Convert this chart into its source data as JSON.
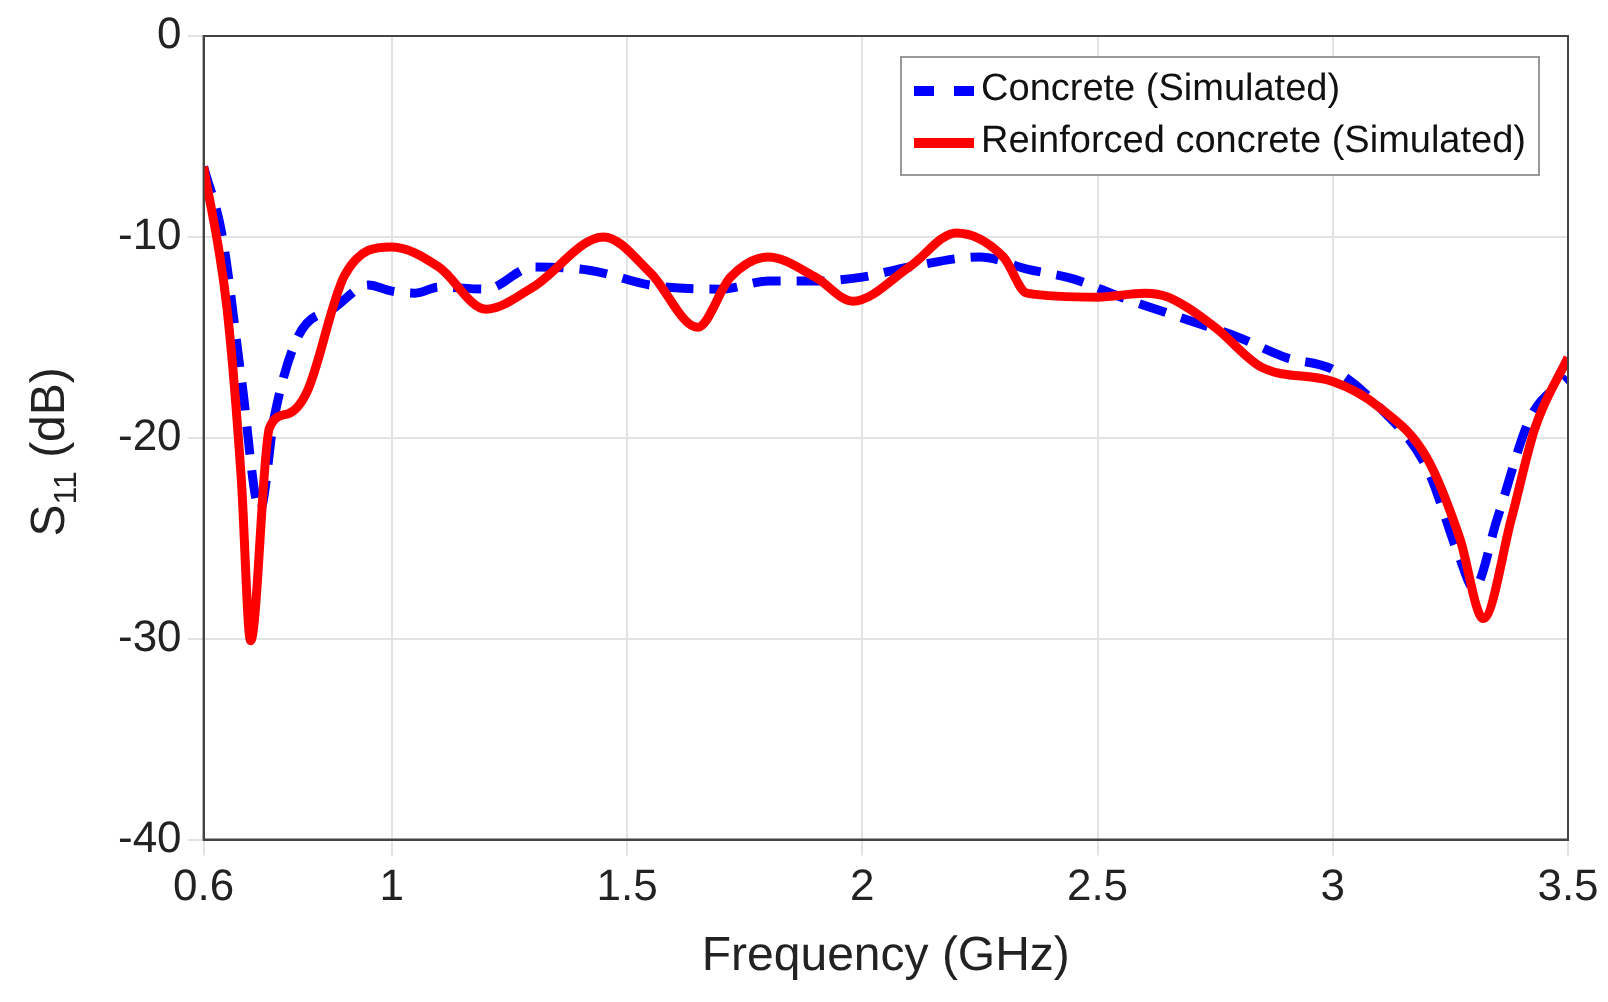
{
  "chart_data": {
    "type": "line",
    "xlabel": "Frequency (GHz)",
    "ylabel": "S$_{11}$ (dB)",
    "xlim": [
      0.6,
      3.5
    ],
    "xticks": [
      0.6,
      1,
      1.5,
      2,
      2.5,
      3,
      3.5
    ],
    "ylim": [
      -40,
      0
    ],
    "yticks": [
      -40,
      -30,
      -20,
      -10,
      0
    ],
    "grid": true,
    "legend": "top right",
    "series": [
      {
        "name": "Concrete (Simulated)",
        "color": "#0000ff",
        "line_style": "dashed",
        "x": [
          0.6,
          0.64,
          0.68,
          0.72,
          0.75,
          0.8,
          0.88,
          0.95,
          1.0,
          1.05,
          1.1,
          1.2,
          1.3,
          1.4,
          1.45,
          1.55,
          1.7,
          1.8,
          1.9,
          2.0,
          2.1,
          2.25,
          2.35,
          2.45,
          2.55,
          2.7,
          2.8,
          2.9,
          3.0,
          3.1,
          3.2,
          3.27,
          3.3,
          3.35,
          3.42,
          3.5
        ],
        "values": [
          -6.5,
          -10,
          -17,
          -23.6,
          -19,
          -15,
          -13.5,
          -12.4,
          -12.7,
          -12.8,
          -12.5,
          -12.6,
          -11.5,
          -11.6,
          -11.8,
          -12.4,
          -12.6,
          -12.2,
          -12.2,
          -12,
          -11.5,
          -11,
          -11.6,
          -12.1,
          -13,
          -14.2,
          -15,
          -16,
          -16.6,
          -18.5,
          -21.5,
          -26,
          -27.5,
          -24,
          -19,
          -17
        ]
      },
      {
        "name": "Reinforced concrete (Simulated)",
        "color": "#ff0000",
        "line_style": "solid",
        "x": [
          0.6,
          0.65,
          0.68,
          0.7,
          0.74,
          0.78,
          0.82,
          0.9,
          1.0,
          1.1,
          1.2,
          1.3,
          1.45,
          1.55,
          1.65,
          1.72,
          1.8,
          1.9,
          1.98,
          2.1,
          2.2,
          2.3,
          2.35,
          2.5,
          2.6,
          2.65,
          2.75,
          2.85,
          3.0,
          3.1,
          3.2,
          3.27,
          3.32,
          3.38,
          3.43,
          3.5
        ],
        "values": [
          -6.5,
          -13.6,
          -22,
          -30.1,
          -19.5,
          -18.8,
          -17.7,
          -11.9,
          -10.5,
          -11.5,
          -13.6,
          -12.5,
          -10,
          -11.8,
          -14.5,
          -12,
          -11,
          -12,
          -13.2,
          -11.5,
          -9.8,
          -11,
          -12.8,
          -13,
          -12.8,
          -13,
          -14.5,
          -16.5,
          -17.2,
          -18.5,
          -21,
          -25,
          -29,
          -24,
          -19.5,
          -16
        ]
      }
    ]
  }
}
